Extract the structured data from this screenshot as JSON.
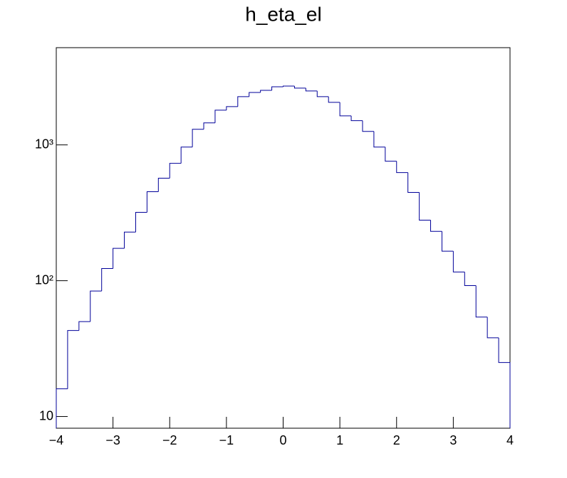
{
  "chart_data": {
    "type": "histogram",
    "title": "h_eta_el",
    "bins": [
      -4.0,
      -3.8,
      -3.6,
      -3.4,
      -3.2,
      -3.0,
      -2.8,
      -2.6,
      -2.4,
      -2.2,
      -2.0,
      -1.8,
      -1.6,
      -1.4,
      -1.2,
      -1.0,
      -0.8,
      -0.6,
      -0.4,
      -0.2,
      0.0,
      0.2,
      0.4,
      0.6,
      0.8,
      1.0,
      1.2,
      1.4,
      1.6,
      1.8,
      2.0,
      2.2,
      2.4,
      2.6,
      2.8,
      3.0,
      3.2,
      3.4,
      3.6,
      3.8,
      4.0
    ],
    "values": [
      16,
      43,
      50,
      84,
      123,
      173,
      228,
      319,
      452,
      569,
      731,
      964,
      1303,
      1452,
      1803,
      1914,
      2265,
      2433,
      2522,
      2680,
      2710,
      2618,
      2496,
      2265,
      2057,
      1637,
      1508,
      1256,
      964,
      759,
      625,
      447,
      279,
      231,
      165,
      116,
      92,
      54,
      38,
      25
    ],
    "color": "#000099",
    "xlim": [
      -4,
      4
    ],
    "xticks": [
      {
        "value": -4,
        "label": "−4"
      },
      {
        "value": -3,
        "label": "−3"
      },
      {
        "value": -2,
        "label": "−2"
      },
      {
        "value": -1,
        "label": "−1"
      },
      0,
      1,
      2,
      3,
      4
    ],
    "ylim": [
      8.2,
      5200
    ],
    "yticks": [
      10,
      {
        "value": 100,
        "label": "10²"
      },
      {
        "value": 1000,
        "label": "10³"
      }
    ],
    "log_y": true
  }
}
